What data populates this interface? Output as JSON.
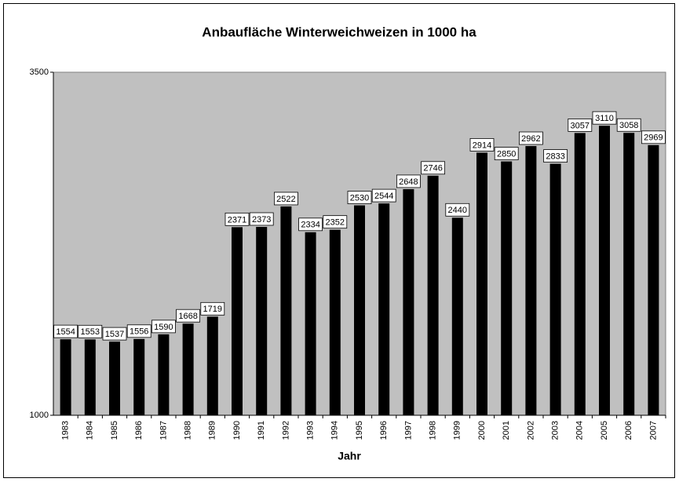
{
  "chart_data": {
    "type": "bar",
    "title": "Anbaufläche Winterweichweizen in 1000 ha",
    "x_label": "Jahr",
    "categories": [
      "1983",
      "1984",
      "1985",
      "1986",
      "1987",
      "1988",
      "1989",
      "1990",
      "1991",
      "1992",
      "1993",
      "1994",
      "1995",
      "1996",
      "1997",
      "1998",
      "1999",
      "2000",
      "2001",
      "2002",
      "2003",
      "2004",
      "2005",
      "2006",
      "2007"
    ],
    "values": [
      1554,
      1553,
      1537,
      1556,
      1590,
      1668,
      1719,
      2371,
      2373,
      2522,
      2334,
      2352,
      2530,
      2544,
      2648,
      2746,
      2440,
      2914,
      2850,
      2962,
      2833,
      3057,
      3110,
      3058,
      2969
    ],
    "color": "#000000",
    "background": "#c0c0c0",
    "ylim": [
      1000,
      3500
    ],
    "yticks": [
      1000,
      3500
    ],
    "grid": false
  }
}
